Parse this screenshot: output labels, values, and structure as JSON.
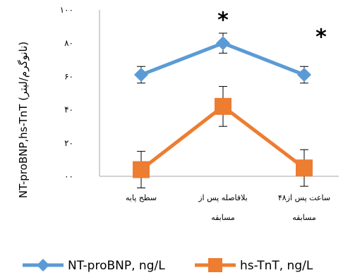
{
  "chart_data": {
    "type": "line",
    "categories": [
      [
        "سطح پایه"
      ],
      [
        "بلافاصله پس از",
        "مسابقه"
      ],
      [
        "۴۸ساعت پس از",
        "مسابقه"
      ]
    ],
    "y_tick_labels": [
      "۰۰",
      "۲۰",
      "۴۰",
      "۶۰",
      "۸۰",
      "۱۰۰"
    ],
    "ylim": [
      0,
      100
    ],
    "ylabel": "NT-proBNP,hs-TnT (نانوگرم/لیتر)",
    "grid": false,
    "legend_position": "bottom",
    "series": [
      {
        "name": "NT-proBNP, ng/L",
        "values": [
          61,
          80,
          61
        ],
        "error": [
          5,
          6,
          5
        ],
        "color": "#5b9bd5",
        "marker": "diamond"
      },
      {
        "name": "hs-TnT, ng/L",
        "values": [
          4,
          42,
          5
        ],
        "error": [
          11,
          12,
          11
        ],
        "color": "#ed7d31",
        "marker": "square"
      }
    ],
    "annotations": [
      {
        "text": "*",
        "category_index": 1,
        "y": 98
      },
      {
        "text": "*",
        "category_index": 2,
        "y": 88
      }
    ]
  }
}
